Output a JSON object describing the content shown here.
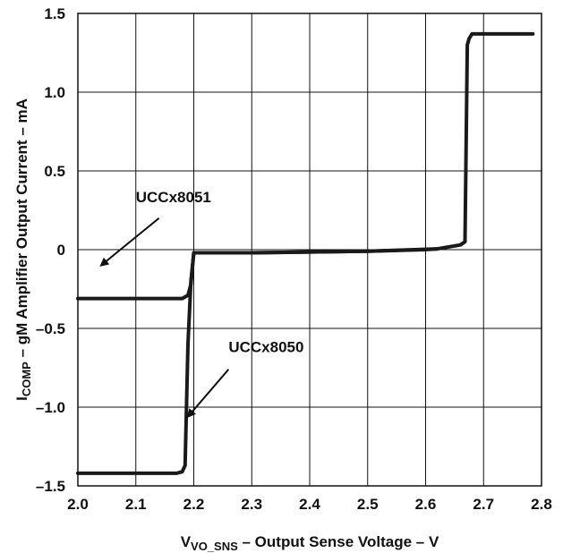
{
  "chart_data": {
    "type": "line",
    "xlabel_main": "V",
    "xlabel_sub": "VO_SNS",
    "xlabel_rest": " – Output Sense Voltage – V",
    "ylabel_main": "I",
    "ylabel_sub": "COMP",
    "ylabel_rest": " – gM Amplifier Output Current – mA",
    "xlim": [
      2.0,
      2.8
    ],
    "ylim": [
      -1.5,
      1.5
    ],
    "x_ticks": [
      2.0,
      2.1,
      2.2,
      2.3,
      2.4,
      2.5,
      2.6,
      2.7,
      2.8
    ],
    "x_tick_labels": [
      "2.0",
      "2.1",
      "2.2",
      "2.3",
      "2.4",
      "2.5",
      "2.6",
      "2.7",
      "2.8"
    ],
    "y_ticks": [
      -1.5,
      -1.0,
      -0.5,
      0,
      0.5,
      1.0,
      1.5
    ],
    "y_tick_labels": [
      "–1.5",
      "–1.0",
      "–0.5",
      "0",
      "0.5",
      "1.0",
      "1.5"
    ],
    "grid": true,
    "series": [
      {
        "name": "UCCx8051",
        "x": [
          2.0,
          2.18,
          2.19,
          2.195,
          2.2,
          2.3,
          2.4,
          2.5,
          2.6,
          2.62
        ],
        "y": [
          -0.31,
          -0.31,
          -0.29,
          -0.22,
          -0.02,
          -0.02,
          -0.015,
          -0.01,
          0.0,
          0.005
        ]
      },
      {
        "name": "UCCx8050",
        "x": [
          2.0,
          2.17,
          2.18,
          2.185,
          2.19,
          2.195,
          2.2,
          2.3,
          2.4,
          2.5,
          2.62,
          2.66,
          2.668,
          2.672,
          2.675,
          2.68,
          2.7,
          2.785
        ],
        "y": [
          -1.42,
          -1.42,
          -1.41,
          -1.37,
          -0.6,
          -0.2,
          -0.02,
          -0.02,
          -0.015,
          -0.01,
          0.005,
          0.03,
          0.05,
          1.3,
          1.34,
          1.37,
          1.37,
          1.37
        ]
      }
    ],
    "annotations": [
      {
        "text": "UCCx8051",
        "series": "UCCx8051",
        "text_x": 2.1,
        "text_y": 0.3,
        "arrow_from": [
          2.14,
          0.2
        ],
        "arrow_to": [
          2.04,
          -0.1
        ]
      },
      {
        "text": "UCCx8050",
        "series": "UCCx8050",
        "text_x": 2.26,
        "text_y": -0.65,
        "arrow_from": [
          2.26,
          -0.76
        ],
        "arrow_to": [
          2.19,
          -1.06
        ]
      }
    ],
    "line_color": "#1a1a1a"
  }
}
